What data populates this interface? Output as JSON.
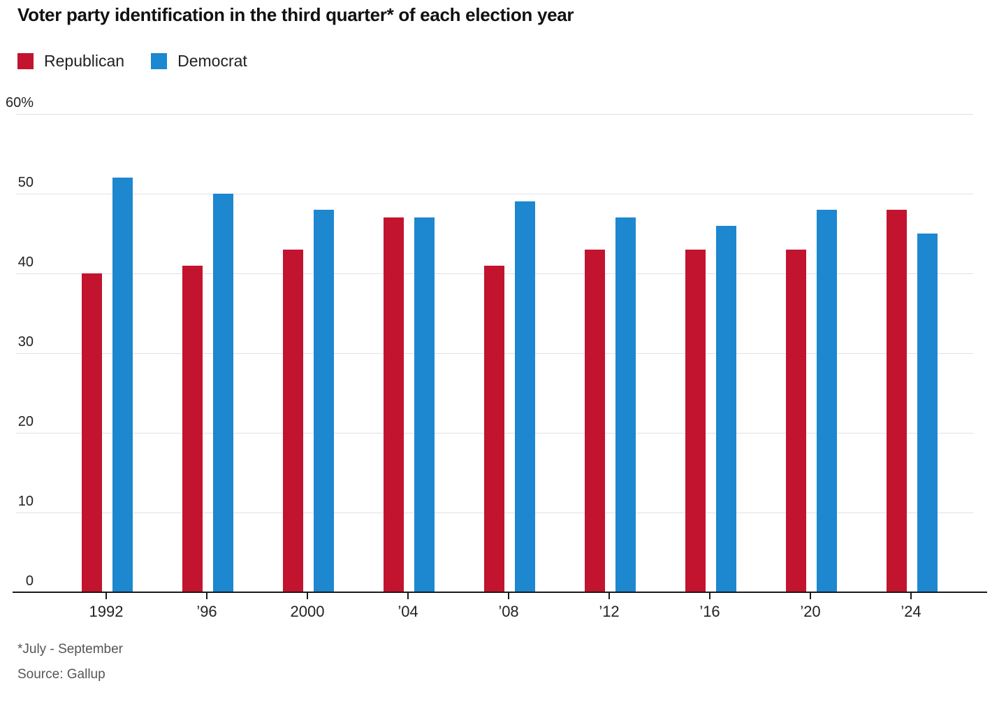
{
  "title": "Voter party identification in the third quarter* of each election year",
  "legend": {
    "items": [
      {
        "label": "Republican",
        "color": "#c2142f"
      },
      {
        "label": "Democrat",
        "color": "#1d87d0"
      }
    ]
  },
  "footnotes": {
    "asterisk_note": "*July - September",
    "source": "Source: Gallup"
  },
  "colors": {
    "republican": "#c2142f",
    "democrat": "#1d87d0",
    "grid": "#e2e2e2",
    "axis": "#1a1a1a",
    "title_text": "#111111",
    "axis_text": "#222222",
    "footnote_text": "#555555",
    "background": "#ffffff"
  },
  "chart_data": {
    "type": "bar",
    "title": "Voter party identification in the third quarter* of each election year",
    "categories": [
      "1992",
      "’96",
      "2000",
      "’04",
      "’08",
      "’12",
      "’16",
      "’20",
      "’24"
    ],
    "series": [
      {
        "name": "Republican",
        "color": "#c2142f",
        "values": [
          40,
          41,
          43,
          47,
          41,
          43,
          43,
          43,
          48
        ]
      },
      {
        "name": "Democrat",
        "color": "#1d87d0",
        "values": [
          52,
          50,
          48,
          47,
          49,
          47,
          46,
          48,
          45
        ]
      }
    ],
    "xlabel": "",
    "ylabel": "",
    "ylim": [
      0,
      60
    ],
    "yticks": [
      0,
      10,
      20,
      30,
      40,
      50,
      60
    ],
    "ytick_top_label": "60%",
    "grid": true,
    "legend_position": "top-left",
    "source": "Source: Gallup",
    "note": "*July - September"
  }
}
